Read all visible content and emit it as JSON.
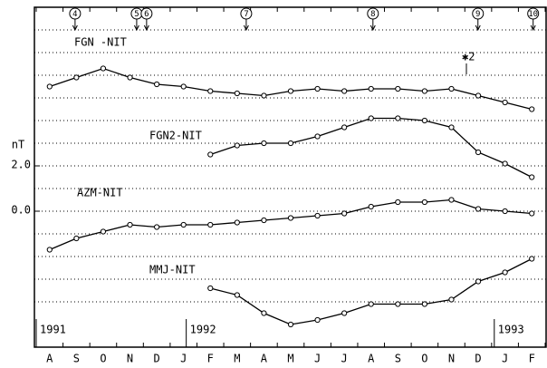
{
  "chart_data": {
    "type": "line",
    "ylabel": "nT",
    "categories": [
      "A",
      "S",
      "O",
      "N",
      "D",
      "J",
      "F",
      "M",
      "A",
      "M",
      "J",
      "J",
      "A",
      "S",
      "O",
      "N",
      "D",
      "J",
      "F"
    ],
    "years": [
      "1991",
      "1992",
      "1993"
    ],
    "ylim": [
      -6,
      9
    ],
    "yticks": [
      {
        "value": 2,
        "label": "2.0"
      },
      {
        "value": 0,
        "label": "0.0"
      }
    ],
    "ygrid": [
      -4,
      -3,
      -2,
      -1,
      0,
      1,
      2,
      3,
      4,
      5,
      6,
      7,
      8
    ],
    "grid": true,
    "series": [
      {
        "name": "FGN -NIT",
        "color": "#000000",
        "values": [
          5.5,
          5.9,
          6.3,
          5.9,
          5.6,
          5.5,
          5.3,
          5.2,
          5.1,
          5.3,
          5.4,
          5.3,
          5.4,
          5.4,
          5.3,
          5.4,
          5.1,
          4.8,
          4.5
        ]
      },
      {
        "name": "FGN2-NIT",
        "color": "#000000",
        "values": [
          null,
          null,
          null,
          null,
          null,
          null,
          2.5,
          2.9,
          3.0,
          3.0,
          3.3,
          3.7,
          4.1,
          4.1,
          4.0,
          3.7,
          2.6,
          2.1,
          1.5
        ]
      },
      {
        "name": "AZM-NIT",
        "color": "#000000",
        "values": [
          -1.7,
          -1.2,
          -0.9,
          -0.6,
          -0.7,
          -0.6,
          -0.6,
          -0.5,
          -0.4,
          -0.3,
          -0.2,
          -0.1,
          0.2,
          0.4,
          0.4,
          0.5,
          0.1,
          0.0,
          -0.1
        ]
      },
      {
        "name": "MMJ-NIT",
        "color": "#000000",
        "values": [
          null,
          null,
          null,
          null,
          null,
          null,
          -3.4,
          -3.7,
          -4.5,
          -5.0,
          -4.8,
          -4.5,
          -4.1,
          -4.1,
          -4.1,
          -3.9,
          -3.1,
          -2.7,
          -2.1
        ]
      }
    ],
    "events": [
      {
        "label": "4",
        "x": 1.45
      },
      {
        "label": "5",
        "x": 3.75
      },
      {
        "label": "6",
        "x": 4.12
      },
      {
        "label": "7",
        "x": 7.84
      },
      {
        "label": "8",
        "x": 12.57
      },
      {
        "label": "9",
        "x": 16.49
      },
      {
        "label": "10",
        "x": 18.55
      }
    ],
    "annotations": [
      "✱2"
    ]
  }
}
